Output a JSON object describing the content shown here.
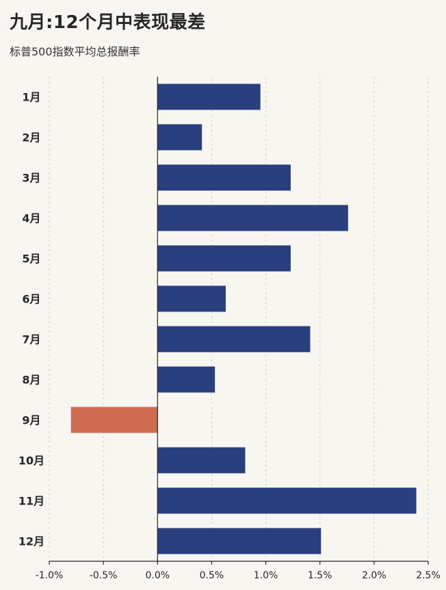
{
  "chart_data": {
    "type": "bar",
    "orientation": "horizontal",
    "title": "九月:12个月中表现最差",
    "subtitle": "标普500指数平均总报酬率",
    "categories": [
      "1月",
      "2月",
      "3月",
      "4月",
      "5月",
      "6月",
      "7月",
      "8月",
      "9月",
      "10月",
      "11月",
      "12月"
    ],
    "values": [
      0.95,
      0.41,
      1.23,
      1.76,
      1.23,
      0.63,
      1.41,
      0.53,
      -0.8,
      0.81,
      2.39,
      1.51
    ],
    "xlim": [
      -1.0,
      2.5
    ],
    "xticks": [
      -1.0,
      -0.5,
      0.0,
      0.5,
      1.0,
      1.5,
      2.0,
      2.5
    ],
    "xtick_labels": [
      "-1.0%",
      "-0.5%",
      "0.0%",
      "0.5%",
      "1.0%",
      "1.5%",
      "2.0%",
      "2.5%"
    ],
    "grid": "vertical dashed",
    "highlight_category": "9月",
    "colors": {
      "positive": "#2a3f7e",
      "highlight": "#cf6b50",
      "grid": "#cfcfcf",
      "axis": "#222222",
      "background": "#f8f6f1"
    }
  }
}
